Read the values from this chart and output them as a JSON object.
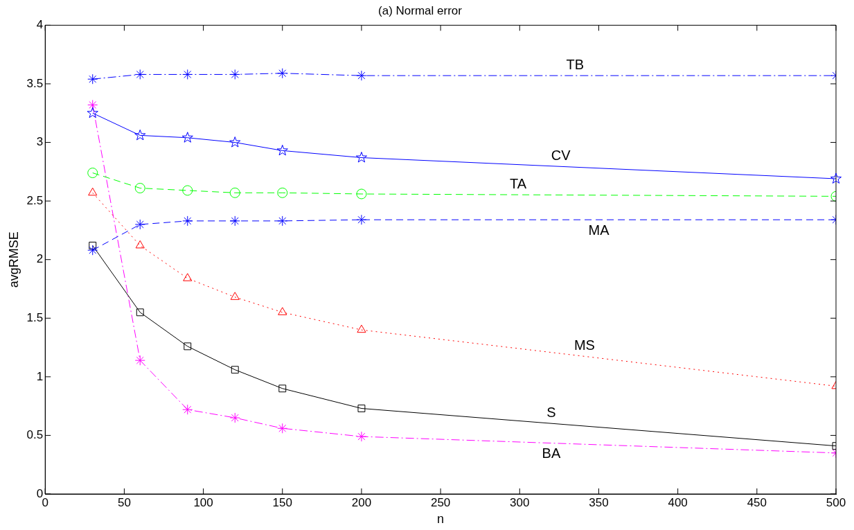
{
  "chart_data": {
    "type": "line",
    "title": "(a) Normal error",
    "xlabel": "n",
    "ylabel": "avgRMSE",
    "x": [
      30,
      60,
      90,
      120,
      150,
      200,
      500
    ],
    "series": [
      {
        "name": "TB",
        "color": "#0000ff",
        "marker": "cross",
        "line_style": "dashdot",
        "values": [
          3.54,
          3.58,
          3.58,
          3.58,
          3.59,
          3.57,
          3.57
        ]
      },
      {
        "name": "CV",
        "color": "#0000ff",
        "marker": "star",
        "line_style": "solid",
        "values": [
          3.25,
          3.06,
          3.04,
          3.0,
          2.93,
          2.87,
          2.69
        ]
      },
      {
        "name": "TA",
        "color": "#00ff00",
        "marker": "circle",
        "line_style": "dashed",
        "values": [
          2.74,
          2.61,
          2.59,
          2.57,
          2.57,
          2.56,
          2.54
        ]
      },
      {
        "name": "MA",
        "color": "#0000ff",
        "marker": "cross",
        "line_style": "dashed",
        "values": [
          2.08,
          2.3,
          2.33,
          2.33,
          2.33,
          2.34,
          2.34
        ]
      },
      {
        "name": "MS",
        "color": "#ff0000",
        "marker": "triangle",
        "line_style": "dotted",
        "values": [
          2.57,
          2.12,
          1.84,
          1.68,
          1.55,
          1.4,
          0.92
        ]
      },
      {
        "name": "S",
        "color": "#000000",
        "marker": "square",
        "line_style": "solid",
        "values": [
          2.12,
          1.55,
          1.26,
          1.06,
          0.9,
          0.73,
          0.41
        ]
      },
      {
        "name": "BA",
        "color": "#ff00ff",
        "marker": "cross",
        "line_style": "dashdot",
        "values": [
          3.32,
          1.14,
          0.72,
          0.65,
          0.56,
          0.49,
          0.35
        ]
      }
    ],
    "xlim": [
      0,
      500
    ],
    "xticks": [
      0,
      50,
      100,
      150,
      200,
      250,
      300,
      350,
      400,
      450,
      500
    ],
    "ylim": [
      0,
      4
    ],
    "yticks": [
      0,
      0.5,
      1,
      1.5,
      2,
      2.5,
      3,
      3.5,
      4
    ],
    "grid": false,
    "legend": false
  }
}
